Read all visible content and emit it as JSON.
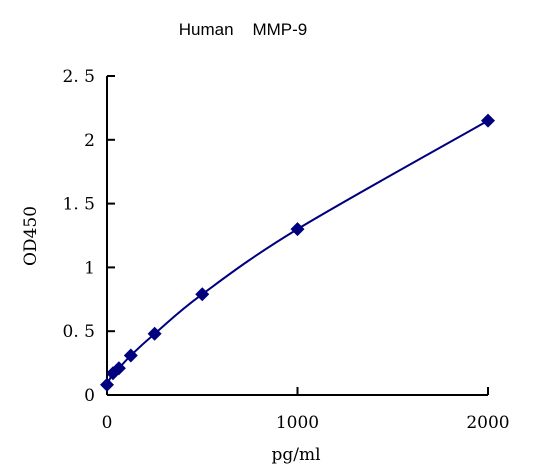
{
  "chart_data": {
    "type": "scatter",
    "title": "Human    MMP-9",
    "xlabel": "pg/ml",
    "ylabel": "OD450",
    "xlim": [
      0,
      2000
    ],
    "ylim": [
      0,
      2.5
    ],
    "x_ticks": [
      0,
      1000,
      2000
    ],
    "x_tick_labels": [
      "0",
      "1000",
      "2000"
    ],
    "y_ticks": [
      0,
      0.5,
      1,
      1.5,
      2,
      2.5
    ],
    "y_tick_labels": [
      "0",
      "0. 5",
      "1",
      "1. 5",
      "2",
      "2. 5"
    ],
    "grid": false,
    "legend": "none",
    "series": [
      {
        "x": [
          0,
          31.25,
          62.5,
          125,
          250,
          500,
          1000,
          2000
        ],
        "y": [
          0.08,
          0.17,
          0.21,
          0.31,
          0.48,
          0.79,
          1.3,
          2.15
        ],
        "marker": "diamond",
        "color": "#00007f",
        "fit_line": true
      }
    ]
  }
}
